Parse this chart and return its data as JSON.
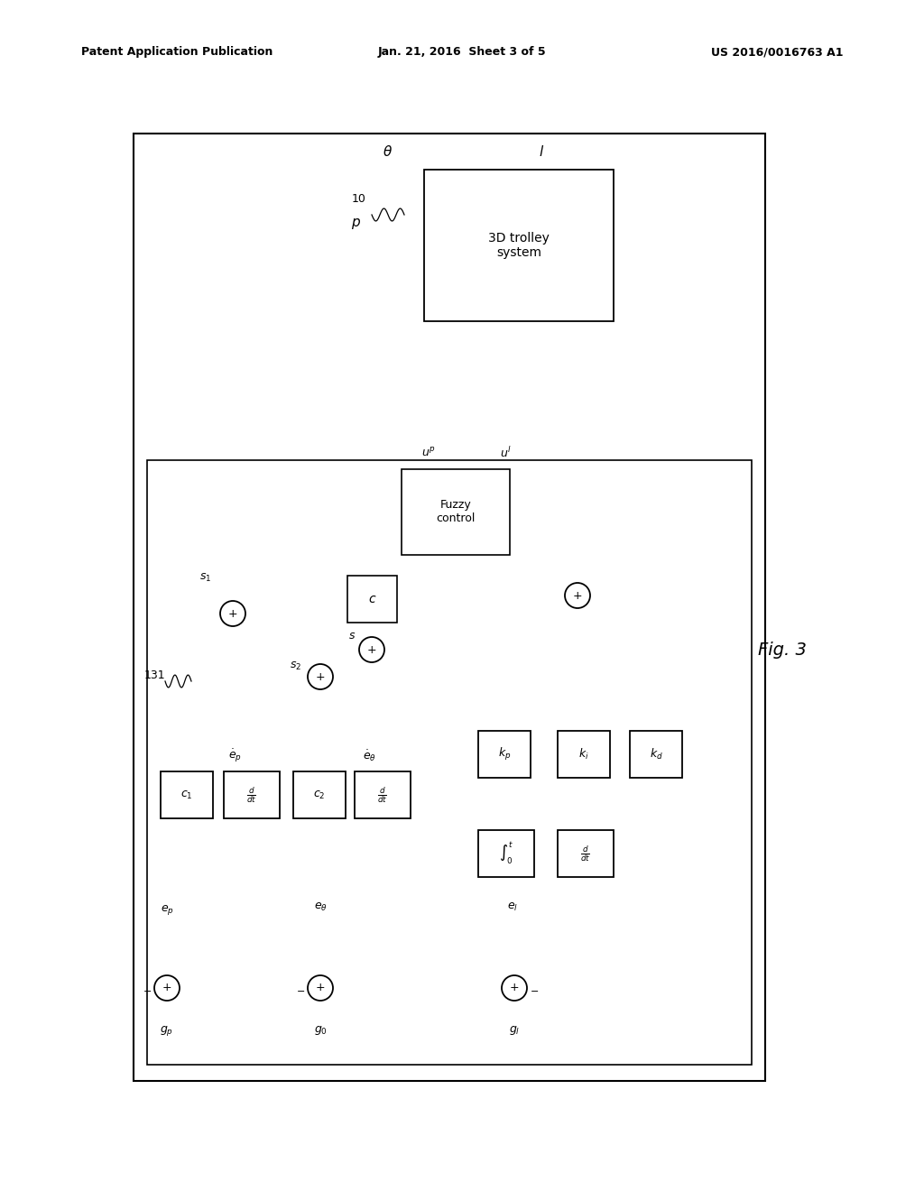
{
  "title_left": "Patent Application Publication",
  "title_center": "Jan. 21, 2016  Sheet 3 of 5",
  "title_right": "US 2016/0016763 A1",
  "fig_label": "Fig. 3",
  "bg_color": "#ffffff"
}
